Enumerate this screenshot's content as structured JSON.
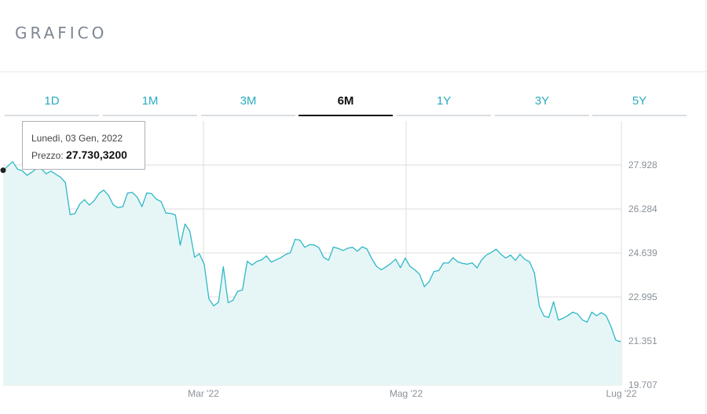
{
  "header": {
    "title": "GRAFICO"
  },
  "tabs": [
    {
      "label": "1D",
      "active": false
    },
    {
      "label": "1M",
      "active": false
    },
    {
      "label": "3M",
      "active": false
    },
    {
      "label": "6M",
      "active": true
    },
    {
      "label": "1Y",
      "active": false
    },
    {
      "label": "3Y",
      "active": false
    },
    {
      "label": "5Y",
      "active": false
    }
  ],
  "tooltip": {
    "date": "Lunedì, 03 Gen, 2022",
    "price_label": "Prezzo:",
    "price_value": "27.730,3200"
  },
  "colors": {
    "line": "#2fb8c6",
    "fill": "#e6f6f7",
    "accent": "#2aabc0",
    "grid": "#dddddd"
  },
  "chart_data": {
    "type": "area",
    "xlabel": "",
    "ylabel": "",
    "x_ticks": [
      "Mar '22",
      "Mag '22",
      "Lug '22"
    ],
    "y_ticks": [
      "27.928",
      "26.284",
      "24.639",
      "22.995",
      "21.351",
      "19.707"
    ],
    "y_tick_values": [
      27928,
      26284,
      24639,
      22995,
      21351,
      19707
    ],
    "ylim": [
      19707,
      29572
    ],
    "grid": true,
    "series": [
      {
        "values": [
          27730,
          27890,
          28050,
          27770,
          27710,
          27540,
          27660,
          27800,
          27780,
          27600,
          27700,
          27580,
          27470,
          27270,
          26070,
          26110,
          26470,
          26630,
          26430,
          26590,
          26860,
          26990,
          26800,
          26440,
          26330,
          26370,
          26880,
          26900,
          26730,
          26370,
          26880,
          26860,
          26650,
          26560,
          26130,
          26120,
          26060,
          24930,
          25720,
          25460,
          24480,
          24610,
          24220,
          22920,
          22660,
          22800,
          24130,
          22780,
          22870,
          23210,
          23260,
          24330,
          24190,
          24320,
          24380,
          24530,
          24300,
          24380,
          24460,
          24580,
          24650,
          25150,
          25120,
          24850,
          24950,
          24940,
          24830,
          24470,
          24370,
          24860,
          24810,
          24730,
          24820,
          24850,
          24700,
          24870,
          24790,
          24430,
          24140,
          24010,
          24120,
          24250,
          24410,
          24090,
          24450,
          24140,
          24010,
          23840,
          23380,
          23570,
          23950,
          23980,
          24270,
          24260,
          24460,
          24310,
          24250,
          24220,
          24270,
          24080,
          24390,
          24570,
          24660,
          24780,
          24590,
          24450,
          24560,
          24360,
          24590,
          24400,
          24310,
          23890,
          22670,
          22280,
          22230,
          22820,
          22130,
          22200,
          22300,
          22430,
          22360,
          22140,
          22050,
          22430,
          22290,
          22410,
          22290,
          21890,
          21380,
          21320
        ]
      }
    ]
  }
}
